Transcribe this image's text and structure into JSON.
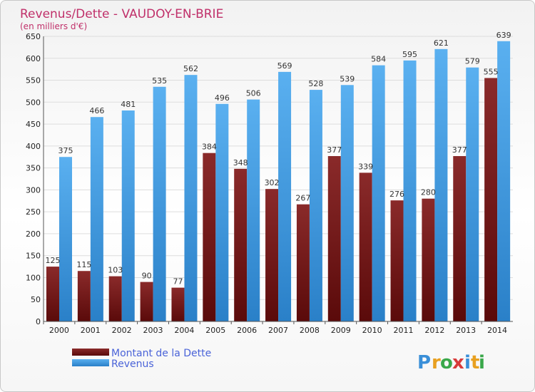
{
  "chart_data": {
    "type": "bar",
    "title": "Revenus/Dette - VAUDOY-EN-BRIE",
    "subtitle": "(en milliers d'€)",
    "categories": [
      "2000",
      "2001",
      "2002",
      "2003",
      "2004",
      "2005",
      "2006",
      "2007",
      "2008",
      "2009",
      "2010",
      "2011",
      "2012",
      "2013",
      "2014"
    ],
    "series": [
      {
        "name": "Montant de la Dette",
        "color": "#7a1a1a",
        "values": [
          125,
          115,
          103,
          90,
          77,
          384,
          348,
          302,
          267,
          377,
          339,
          276,
          280,
          377,
          555
        ]
      },
      {
        "name": "Revenus",
        "color": "#3a9ae0",
        "values": [
          375,
          466,
          481,
          535,
          562,
          496,
          506,
          569,
          528,
          539,
          584,
          595,
          621,
          579,
          639
        ]
      }
    ],
    "ylim": [
      0,
      650
    ],
    "yticks": [
      0,
      50,
      100,
      150,
      200,
      250,
      300,
      350,
      400,
      450,
      500,
      550,
      600,
      650
    ],
    "grid": true,
    "legend_position": "bottom-left"
  },
  "brand": {
    "text": "Proxiti",
    "letters": [
      "P",
      "r",
      "o",
      "x",
      "i",
      "t",
      "i"
    ],
    "colors": [
      "#3a8fd8",
      "#e8a020",
      "#3aa84a",
      "#d83a3a",
      "#3a8fd8",
      "#e8a020",
      "#3aa84a"
    ]
  }
}
